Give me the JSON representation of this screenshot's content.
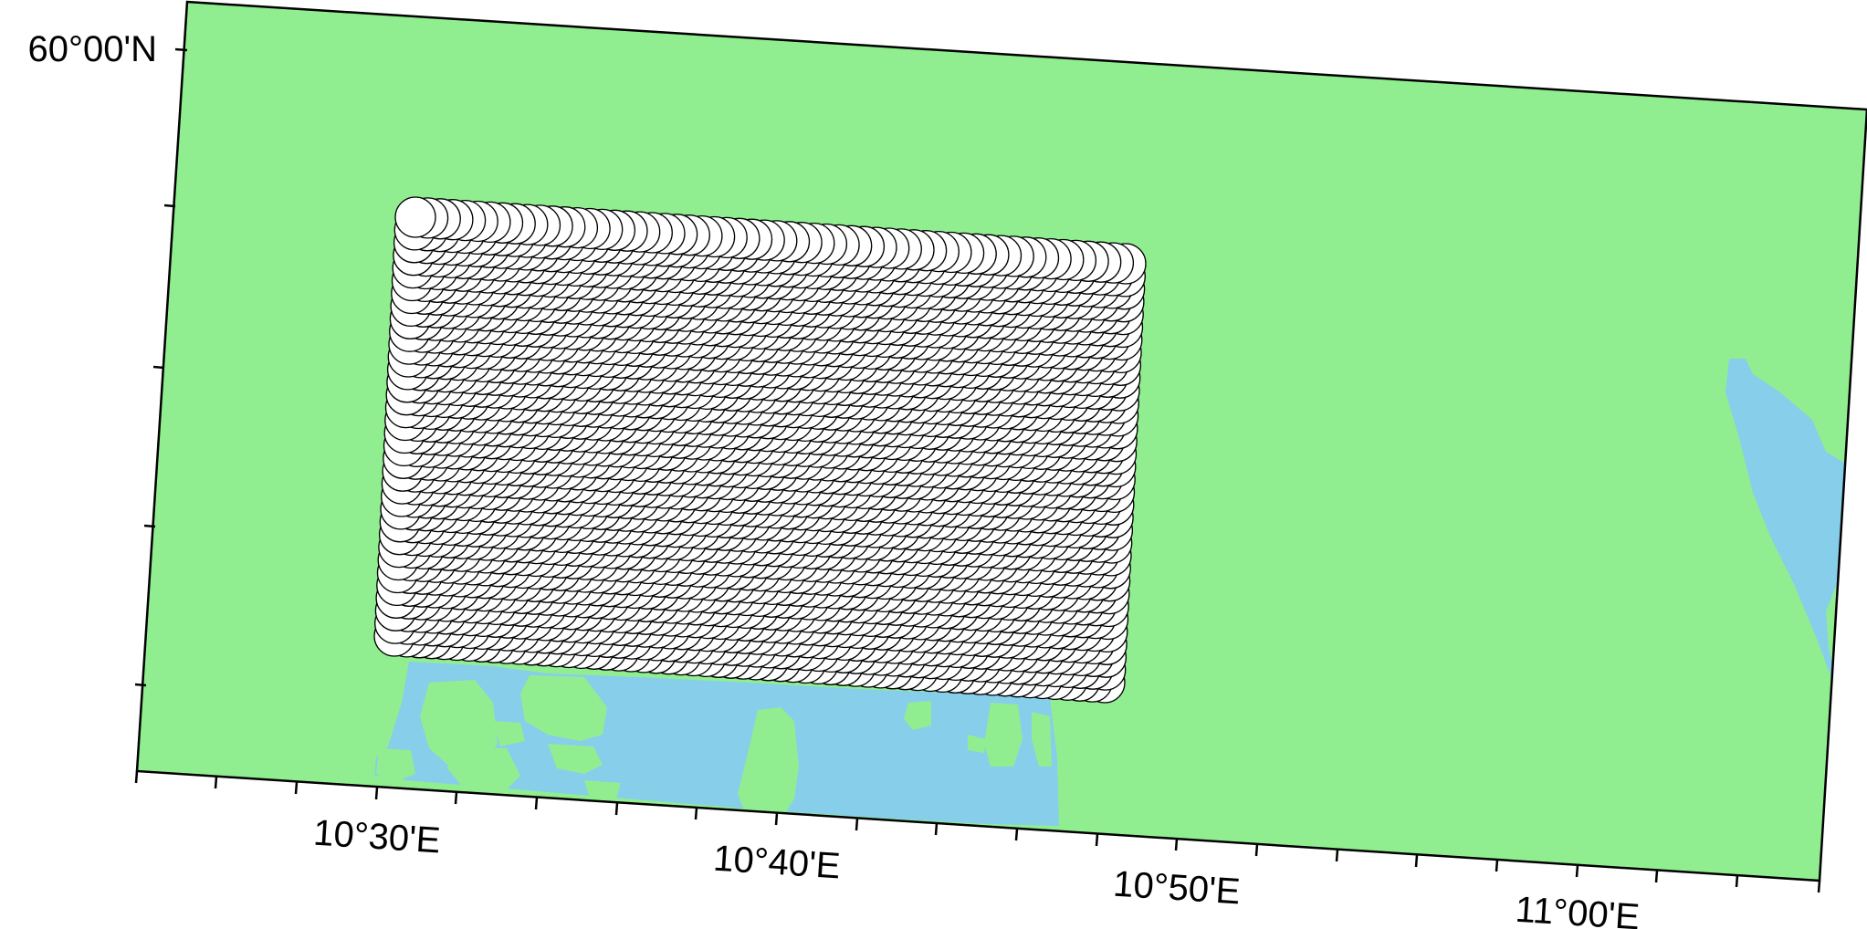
{
  "map": {
    "projection": "oblique",
    "colors": {
      "land": "#90ee90",
      "water": "#87ceeb",
      "frame": "#000000",
      "symbol_fill": "#ffffff",
      "symbol_outline": "#000000"
    },
    "axes": {
      "x_labels": [
        "10°30'E",
        "10°40'E",
        "10°50'E",
        "11°00'E"
      ],
      "y_labels": [
        "60°00'N"
      ]
    },
    "symbols": {
      "shape": "circle",
      "grid_columns": 58,
      "grid_rows": 34
    }
  }
}
